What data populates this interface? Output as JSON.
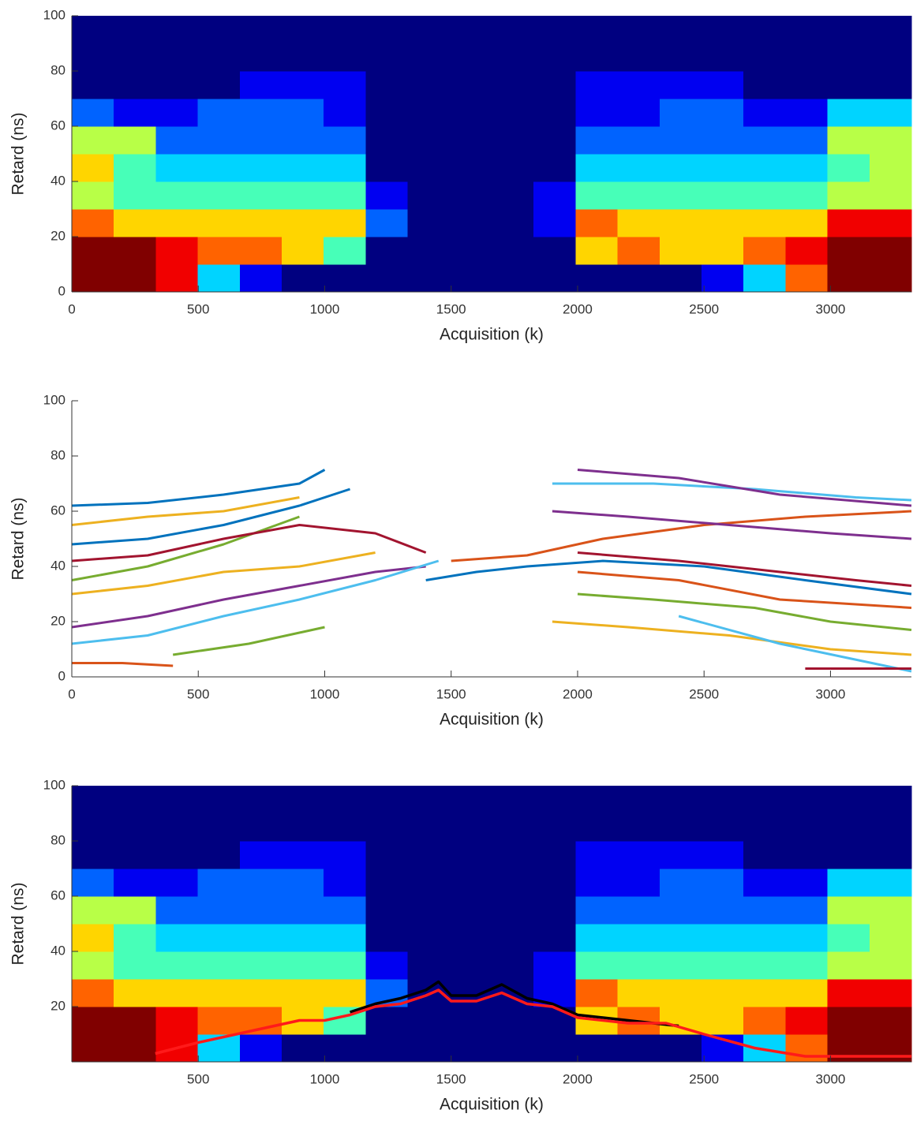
{
  "chart_data": [
    {
      "type": "heatmap",
      "xlabel": "Acquisition (k)",
      "ylabel": "Retard (ns)",
      "colormap": "jet",
      "clim": [
        0,
        9
      ],
      "xlim": [
        0,
        3320
      ],
      "ylim": [
        0,
        100
      ],
      "xticks": [
        0,
        500,
        1000,
        1500,
        2000,
        2500,
        3000
      ],
      "yticks": [
        0,
        20,
        40,
        60,
        80,
        100
      ],
      "x_edges": [
        0,
        166,
        332,
        498,
        664,
        830,
        996,
        1162,
        1328,
        1494,
        1660,
        1826,
        1992,
        2158,
        2324,
        2490,
        2656,
        2822,
        2988,
        3154,
        3320
      ],
      "y_edges": [
        0,
        10,
        20,
        30,
        40,
        50,
        60,
        70,
        80,
        90,
        100
      ],
      "z": [
        [
          9,
          9,
          8,
          3,
          1,
          0,
          0,
          0,
          0,
          0,
          0,
          0,
          0,
          0,
          0,
          1,
          3,
          7,
          9,
          9
        ],
        [
          9,
          9,
          8,
          7,
          7,
          6,
          4,
          0,
          0,
          0,
          0,
          0,
          6,
          7,
          6,
          6,
          7,
          8,
          9,
          9
        ],
        [
          7,
          6,
          6,
          6,
          6,
          6,
          6,
          2,
          0,
          0,
          0,
          1,
          7,
          6,
          6,
          6,
          6,
          6,
          8,
          8
        ],
        [
          5,
          4,
          4,
          4,
          4,
          4,
          4,
          1,
          0,
          0,
          0,
          1,
          4,
          4,
          4,
          4,
          4,
          4,
          5,
          5
        ],
        [
          6,
          4,
          3,
          3,
          3,
          3,
          3,
          0,
          0,
          0,
          0,
          0,
          3,
          3,
          3,
          3,
          3,
          3,
          4,
          5
        ],
        [
          5,
          5,
          2,
          2,
          2,
          2,
          2,
          0,
          0,
          0,
          0,
          0,
          2,
          2,
          2,
          2,
          2,
          2,
          5,
          5
        ],
        [
          2,
          1,
          1,
          2,
          2,
          2,
          1,
          0,
          0,
          0,
          0,
          0,
          1,
          1,
          2,
          2,
          1,
          1,
          3,
          3
        ],
        [
          0,
          0,
          0,
          0,
          1,
          1,
          1,
          0,
          0,
          0,
          0,
          0,
          1,
          1,
          1,
          1,
          0,
          0,
          0,
          0
        ],
        [
          0,
          0,
          0,
          0,
          0,
          0,
          0,
          0,
          0,
          0,
          0,
          0,
          0,
          0,
          0,
          0,
          0,
          0,
          0,
          0
        ],
        [
          0,
          0,
          0,
          0,
          0,
          0,
          0,
          0,
          0,
          0,
          0,
          0,
          0,
          0,
          0,
          0,
          0,
          0,
          0,
          0
        ]
      ]
    },
    {
      "type": "line",
      "xlabel": "Acquisition (k)",
      "ylabel": "Retard (ns)",
      "xlim": [
        0,
        3320
      ],
      "ylim": [
        0,
        100
      ],
      "xticks": [
        0,
        500,
        1000,
        1500,
        2000,
        2500,
        3000
      ],
      "yticks": [
        0,
        20,
        40,
        60,
        80,
        100
      ],
      "series": [
        {
          "color": "#0072bd",
          "x": [
            0,
            300,
            600,
            900,
            1100
          ],
          "values": [
            48,
            50,
            55,
            62,
            68
          ]
        },
        {
          "color": "#d95319",
          "x": [
            0,
            200,
            400
          ],
          "values": [
            5,
            5,
            4
          ]
        },
        {
          "color": "#edb120",
          "x": [
            0,
            300,
            600,
            900,
            1200
          ],
          "values": [
            30,
            33,
            38,
            40,
            45
          ]
        },
        {
          "color": "#7e2f8e",
          "x": [
            0,
            300,
            600,
            900,
            1200,
            1400
          ],
          "values": [
            18,
            22,
            28,
            33,
            38,
            40
          ]
        },
        {
          "color": "#77ac30",
          "x": [
            0,
            300,
            600,
            900
          ],
          "values": [
            35,
            40,
            48,
            58
          ]
        },
        {
          "color": "#4dbeee",
          "x": [
            0,
            300,
            600,
            900,
            1200,
            1450
          ],
          "values": [
            12,
            15,
            22,
            28,
            35,
            42
          ]
        },
        {
          "color": "#a2142f",
          "x": [
            0,
            300,
            600,
            900,
            1200,
            1400
          ],
          "values": [
            42,
            44,
            50,
            55,
            52,
            45
          ]
        },
        {
          "color": "#0072bd",
          "x": [
            1400,
            1600,
            1800,
            2100,
            2500,
            2900,
            3320
          ],
          "values": [
            35,
            38,
            40,
            42,
            40,
            35,
            30
          ]
        },
        {
          "color": "#d95319",
          "x": [
            1500,
            1800,
            2100,
            2500,
            2900,
            3320
          ],
          "values": [
            42,
            44,
            50,
            55,
            58,
            60
          ]
        },
        {
          "color": "#edb120",
          "x": [
            1900,
            2200,
            2600,
            3000,
            3320
          ],
          "values": [
            20,
            18,
            15,
            10,
            8
          ]
        },
        {
          "color": "#7e2f8e",
          "x": [
            1900,
            2200,
            2600,
            3000,
            3320
          ],
          "values": [
            60,
            58,
            55,
            52,
            50
          ]
        },
        {
          "color": "#77ac30",
          "x": [
            2000,
            2300,
            2700,
            3000,
            3320
          ],
          "values": [
            30,
            28,
            25,
            20,
            17
          ]
        },
        {
          "color": "#4dbeee",
          "x": [
            1900,
            2300,
            2700,
            3100,
            3320
          ],
          "values": [
            70,
            70,
            68,
            65,
            64
          ]
        },
        {
          "color": "#a2142f",
          "x": [
            2000,
            2400,
            2800,
            3100,
            3320
          ],
          "values": [
            45,
            42,
            38,
            35,
            33
          ]
        },
        {
          "color": "#0072bd",
          "x": [
            0,
            300,
            600,
            900,
            1000
          ],
          "values": [
            62,
            63,
            66,
            70,
            75
          ]
        },
        {
          "color": "#d95319",
          "x": [
            2000,
            2400,
            2800,
            3320
          ],
          "values": [
            38,
            35,
            28,
            25
          ]
        },
        {
          "color": "#edb120",
          "x": [
            0,
            300,
            600,
            900
          ],
          "values": [
            55,
            58,
            60,
            65
          ]
        },
        {
          "color": "#7e2f8e",
          "x": [
            2000,
            2400,
            2800,
            3320
          ],
          "values": [
            75,
            72,
            66,
            62
          ]
        },
        {
          "color": "#77ac30",
          "x": [
            400,
            700,
            1000
          ],
          "values": [
            8,
            12,
            18
          ]
        },
        {
          "color": "#4dbeee",
          "x": [
            2400,
            2800,
            3320
          ],
          "values": [
            22,
            12,
            2
          ]
        },
        {
          "color": "#a2142f",
          "x": [
            2900,
            3320
          ],
          "values": [
            3,
            3
          ]
        }
      ]
    },
    {
      "type": "heatmap",
      "xlabel": "Acquisition (k)",
      "ylabel": "Retard (ns)",
      "colormap": "jet",
      "clim": [
        0,
        9
      ],
      "xlim": [
        0,
        3320
      ],
      "ylim": [
        0,
        100
      ],
      "xticks": [
        500,
        1000,
        1500,
        2000,
        2500,
        3000
      ],
      "yticks": [
        20,
        40,
        60,
        80,
        100
      ],
      "x_edges": [
        0,
        166,
        332,
        498,
        664,
        830,
        996,
        1162,
        1328,
        1494,
        1660,
        1826,
        1992,
        2158,
        2324,
        2490,
        2656,
        2822,
        2988,
        3154,
        3320
      ],
      "y_edges": [
        0,
        10,
        20,
        30,
        40,
        50,
        60,
        70,
        80,
        90,
        100
      ],
      "z": [
        [
          9,
          9,
          8,
          3,
          1,
          0,
          0,
          0,
          0,
          0,
          0,
          0,
          0,
          0,
          0,
          1,
          3,
          7,
          9,
          9
        ],
        [
          9,
          9,
          8,
          7,
          7,
          6,
          4,
          0,
          0,
          0,
          0,
          0,
          6,
          7,
          6,
          6,
          7,
          8,
          9,
          9
        ],
        [
          7,
          6,
          6,
          6,
          6,
          6,
          6,
          2,
          0,
          0,
          0,
          1,
          7,
          6,
          6,
          6,
          6,
          6,
          8,
          8
        ],
        [
          5,
          4,
          4,
          4,
          4,
          4,
          4,
          1,
          0,
          0,
          0,
          1,
          4,
          4,
          4,
          4,
          4,
          4,
          5,
          5
        ],
        [
          6,
          4,
          3,
          3,
          3,
          3,
          3,
          0,
          0,
          0,
          0,
          0,
          3,
          3,
          3,
          3,
          3,
          3,
          4,
          5
        ],
        [
          5,
          5,
          2,
          2,
          2,
          2,
          2,
          0,
          0,
          0,
          0,
          0,
          2,
          2,
          2,
          2,
          2,
          2,
          5,
          5
        ],
        [
          2,
          1,
          1,
          2,
          2,
          2,
          1,
          0,
          0,
          0,
          0,
          0,
          1,
          1,
          2,
          2,
          1,
          1,
          3,
          3
        ],
        [
          0,
          0,
          0,
          0,
          1,
          1,
          1,
          0,
          0,
          0,
          0,
          0,
          1,
          1,
          1,
          1,
          0,
          0,
          0,
          0
        ],
        [
          0,
          0,
          0,
          0,
          0,
          0,
          0,
          0,
          0,
          0,
          0,
          0,
          0,
          0,
          0,
          0,
          0,
          0,
          0,
          0
        ],
        [
          0,
          0,
          0,
          0,
          0,
          0,
          0,
          0,
          0,
          0,
          0,
          0,
          0,
          0,
          0,
          0,
          0,
          0,
          0,
          0
        ]
      ],
      "series": [
        {
          "color": "#000000",
          "x": [
            1100,
            1200,
            1300,
            1400,
            1450,
            1500,
            1600,
            1700,
            1800,
            1900,
            2000,
            2200,
            2400
          ],
          "values": [
            18,
            21,
            23,
            26,
            29,
            24,
            24,
            28,
            23,
            21,
            17,
            15,
            13
          ]
        },
        {
          "color": "#ff1a1a",
          "x": [
            330,
            500,
            700,
            900,
            1000,
            1100,
            1200,
            1300,
            1400,
            1450,
            1500,
            1600,
            1700,
            1800,
            1900,
            2000,
            2200,
            2350,
            2500,
            2700,
            2900,
            3320
          ],
          "values": [
            3,
            7,
            11,
            15,
            15,
            17,
            20,
            21,
            24,
            26,
            22,
            22,
            25,
            21,
            20,
            16,
            14,
            14,
            10,
            5,
            2,
            2
          ]
        }
      ]
    }
  ]
}
